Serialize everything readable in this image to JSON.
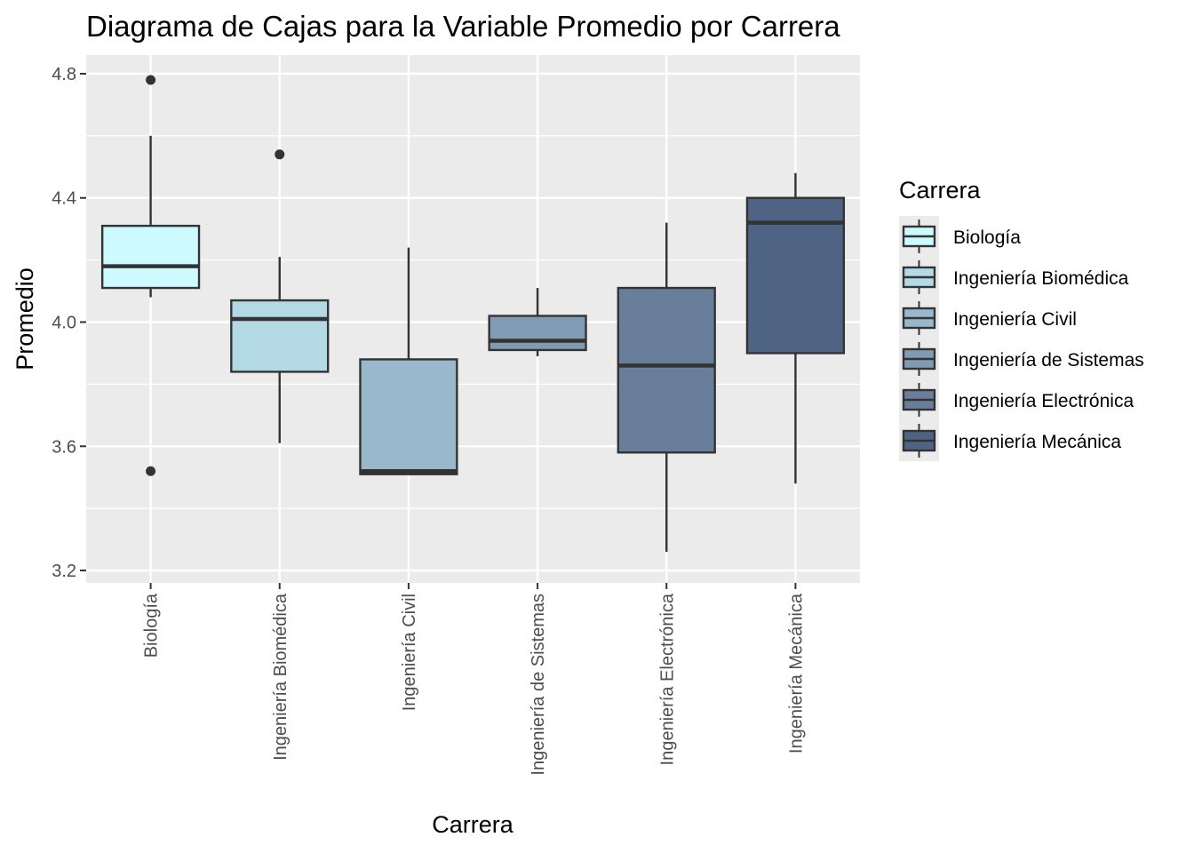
{
  "chart_data": {
    "type": "boxplot",
    "title": "Diagrama de Cajas para la Variable Promedio por Carrera",
    "xlabel": "Carrera",
    "ylabel": "Promedio",
    "ylim": [
      3.16,
      4.86
    ],
    "yticks": [
      "3.2",
      "3.6",
      "4.0",
      "4.4",
      "4.8"
    ],
    "ytick_values": [
      3.2,
      3.6,
      4.0,
      4.4,
      4.8
    ],
    "grid": true,
    "legend": {
      "title": "Carrera",
      "placement": "right"
    },
    "categories": [
      "Biología",
      "Ingeniería Biomédica",
      "Ingeniería Civil",
      "Ingeniería de Sistemas",
      "Ingeniería Electrónica",
      "Ingeniería Mecánica"
    ],
    "series": [
      {
        "name": "Biología",
        "color": "#ccfaff",
        "whisker_low": 4.08,
        "q1": 4.11,
        "median": 4.18,
        "q3": 4.31,
        "whisker_high": 4.6,
        "outliers": [
          4.78,
          3.52
        ]
      },
      {
        "name": "Ingeniería Biomédica",
        "color": "#b3d9e5",
        "whisker_low": 3.61,
        "q1": 3.84,
        "median": 4.01,
        "q3": 4.07,
        "whisker_high": 4.21,
        "outliers": [
          4.54
        ]
      },
      {
        "name": "Ingeniería Civil",
        "color": "#9ab8cb",
        "whisker_low": 3.51,
        "q1": 3.51,
        "median": 3.52,
        "q3": 3.88,
        "whisker_high": 4.24,
        "outliers": []
      },
      {
        "name": "Ingeniería de Sistemas",
        "color": "#819bb2",
        "whisker_low": 3.89,
        "q1": 3.91,
        "median": 3.94,
        "q3": 4.02,
        "whisker_high": 4.11,
        "outliers": []
      },
      {
        "name": "Ingeniería Electrónica",
        "color": "#687e9b",
        "whisker_low": 3.26,
        "q1": 3.58,
        "median": 3.86,
        "q3": 4.11,
        "whisker_high": 4.32,
        "outliers": []
      },
      {
        "name": "Ingeniería Mecánica",
        "color": "#4f6385",
        "whisker_low": 3.48,
        "q1": 3.9,
        "median": 4.32,
        "q3": 4.4,
        "whisker_high": 4.48,
        "outliers": []
      }
    ]
  }
}
